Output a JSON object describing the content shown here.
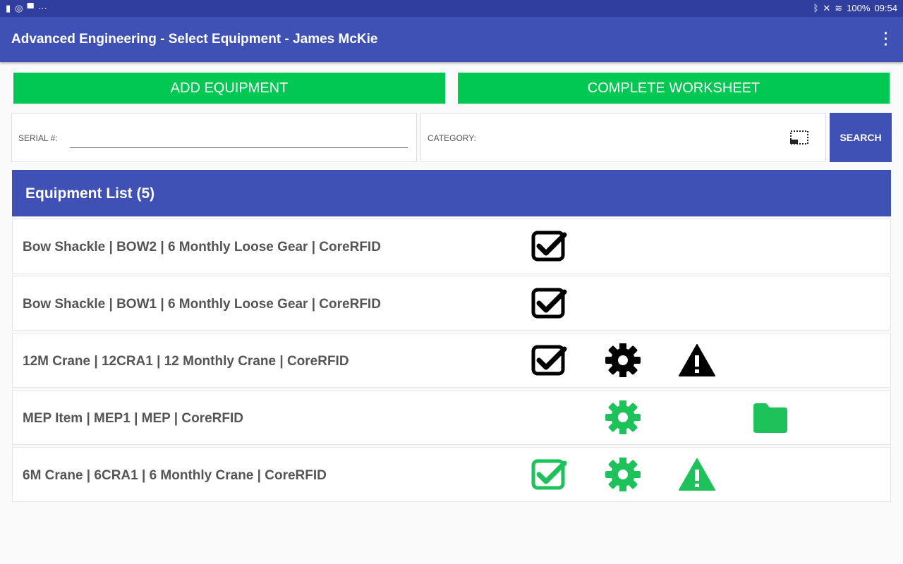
{
  "status_bar": {
    "icons": [
      "bag-icon",
      "sync-icon",
      "message-icon",
      "more-icon"
    ],
    "right_icons": [
      "bluetooth-icon",
      "mute-icon",
      "wifi-icon",
      "signal-icon"
    ],
    "battery": "100%",
    "time": "09:54"
  },
  "app_bar": {
    "title": "Advanced Engineering - Select Equipment - James McKie",
    "menu_icon": "overflow-menu-icon"
  },
  "buttons": {
    "add": "ADD EQUIPMENT",
    "complete": "COMPLETE WORKSHEET",
    "search": "SEARCH"
  },
  "serial": {
    "label": "SERIAL #:",
    "value": ""
  },
  "category": {
    "label": "CATEGORY:",
    "value": ""
  },
  "colors": {
    "primary": "#3f51b5",
    "accent_green": "#00c853",
    "icon_green": "#1db954"
  },
  "list": {
    "title": "Equipment List (5)",
    "items": [
      {
        "label": "Bow Shackle | BOW2 | 6 Monthly Loose Gear | CoreRFID",
        "check": "black",
        "gear": null,
        "warning": null,
        "folder": null
      },
      {
        "label": "Bow Shackle | BOW1 | 6 Monthly Loose Gear | CoreRFID",
        "check": "black",
        "gear": null,
        "warning": null,
        "folder": null
      },
      {
        "label": "12M Crane | 12CRA1 | 12 Monthly Crane | CoreRFID",
        "check": "black",
        "gear": "black",
        "warning": "black",
        "folder": null
      },
      {
        "label": "MEP Item | MEP1 | MEP | CoreRFID",
        "check": null,
        "gear": "green",
        "warning": null,
        "folder": "green"
      },
      {
        "label": "6M Crane | 6CRA1 | 6 Monthly Crane | CoreRFID",
        "check": "green",
        "gear": "green",
        "warning": "green",
        "folder": null
      }
    ]
  }
}
